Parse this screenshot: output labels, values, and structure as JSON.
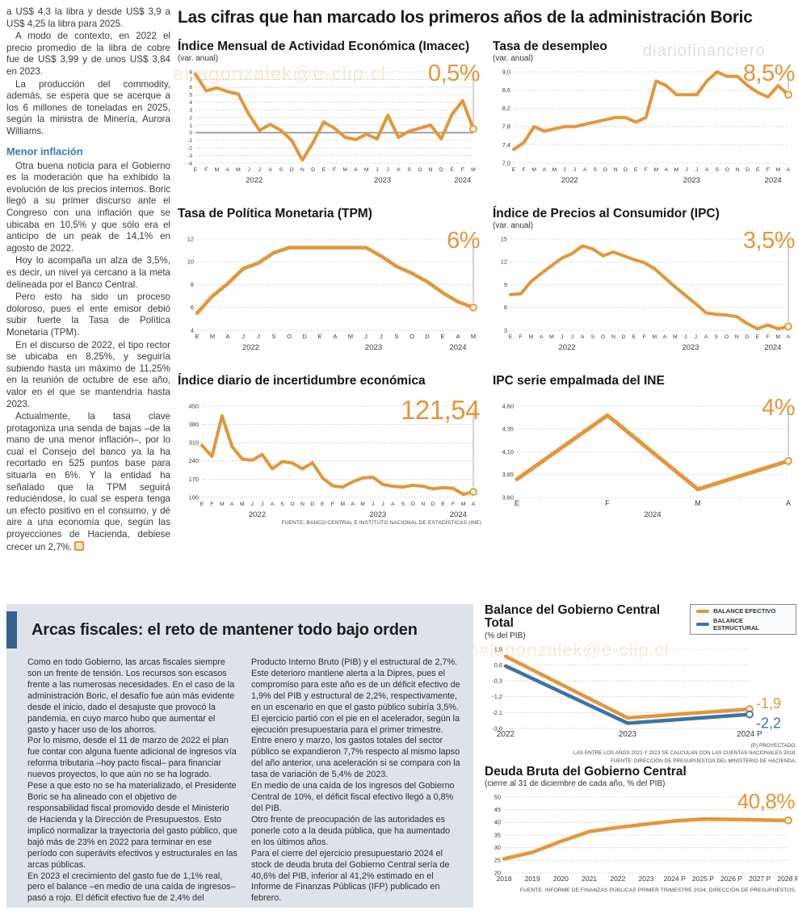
{
  "main_title": "Las cifras que han marcado los primeros años de la administración Boric",
  "watermarks": {
    "wm1": "eriagonzalek@e-clip.cl",
    "wm2": "diariofinanciero",
    "wm3": "diariofinanciero#lagonzalek@e-clip.cl"
  },
  "left_column": {
    "p1": "a US$ 4,3 la libra y desde US$ 3,9 a US$ 4,25 la libra para 2025.",
    "p2": "A modo de contexto, en 2022 el precio promedio de la libra de cobre fue de US$ 3,99 y de unos US$ 3,84 en 2023.",
    "p3": "La producción del commodity, además, se espera que se acerque a los 6 millones de toneladas en 2025, según la ministra de Minería, Aurora Williams.",
    "subhead": "Menor inflación",
    "p4": "Otra buena noticia para el Gobierno es la moderación que ha exhibido la evolución de los precios internos. Boric llegó a su primer discurso ante el Congreso con una inflación que se ubicaba en 10,5% y que sólo era el anticipo de un peak de 14,1% en agosto de 2022.",
    "p5": "Hoy lo acompaña un alza de 3,5%, es decir, un nivel ya cercano a la meta delineada por el Banco Central.",
    "p6": "Pero esto ha sido un proceso doloroso, pues el ente emisor debió subir fuerte la Tasa de Política Monetaria (TPM).",
    "p7": "En el discurso de 2022, el tipo rector se ubicaba en 8,25%, y seguiría subiendo hasta un máximo de 11,25% en la reunión de octubre de ese año, valor en el que se mantendría hasta 2023.",
    "p8": "Actualmente, la tasa clave protagoniza una senda de bajas –de la mano de una menor inflación–, por lo cual el Consejo del banco ya la ha recortado en 525 puntos base para situarla en 6%. Y la entidad ha señalado que la TPM seguirá reduciéndose, lo cual se espera tenga un efecto positivo en el consumo, y dé aire a una economía que, según las proyecciones de Hacienda, debiese crecer un 2,7%."
  },
  "bottom": {
    "title": "Arcas fiscales: el reto de mantener todo bajo orden",
    "col1": {
      "p1": "Como en todo Gobierno, las arcas fiscales siempre son un frente de tensión. Los recursos son escasos frente a las numerosas necesidades. En el caso de la administración Boric, el desafío fue aún más evidente desde el inicio, dado el desajuste que provocó la pandemia, en cuyo marco hubo que aumentar el gasto y hacer uso de los ahorros.",
      "p2": "Por lo mismo, desde el 11 de marzo de 2022 el plan fue contar con alguna fuente adicional de ingresos vía reforma tributaria –hoy pacto fiscal– para financiar nuevos proyectos, lo que aún no se ha logrado.",
      "p3": "Pese a que esto no se ha materializado, el Presidente Boric se ha alineado con el objetivo de responsabilidad fiscal promovido desde el Ministerio de Hacienda y la Dirección de Presupuestos. Esto implicó normalizar la trayectoria del gasto público, que bajó más de 23% en 2022 para terminar en ese período con superávits efectivos y estructurales en las arcas públicas.",
      "p4": "En 2023 el crecimiento del gasto fue de 1,1% real, pero el balance –en medio de una caída de ingresos– pasó a rojo. El déficit efectivo fue de 2,4% del"
    },
    "col2": {
      "p1": "Producto Interno Bruto (PIB) y el estructural de 2,7%. Este deterioro mantiene alerta a la Dipres, pues el compromiso para este año es de un déficit efectivo de 1,9% del PIB y estructural de 2,2%, respectivamente, en un escenario en que el gasto público subiría 3,5%.",
      "p2": "El ejercicio partió con el pie en el acelerador, según la ejecución presupuestaria para el primer trimestre. Entre enero y marzo, los gastos totales del sector público se expandieron 7,7% respecto al mismo lapso del año anterior, una aceleración si se compara con la tasa de variación de 5,4% de 2023.",
      "p3": "En medio de una caída de los ingresos del Gobierno Central de 10%, el déficit fiscal efectivo llegó a 0,8% del PIB.",
      "p4": "Otro frente de preocupación de las autoridades es ponerle coto a la deuda pública, que ha aumentado en los últimos años.",
      "p5": "Para el cierre del ejercicio presupuestario 2024 el stock de deuda bruta del Gobierno Central sería de 40,6% del PIB, inferior al 41,2% estimado en el Informe de Finanzas Públicas (IFP) publicado en febrero."
    }
  },
  "chart_data": [
    {
      "id": "imacec",
      "type": "line",
      "title": "Índice Mensual de Actividad Económica (Imacec)",
      "subtitle": "(var. anual)",
      "big_label": "0,5%",
      "ylim": [
        -4,
        8
      ],
      "yticks": [
        8,
        7,
        6,
        5,
        4,
        3,
        2,
        1,
        0,
        -1,
        -2,
        -3,
        -4
      ],
      "ytick_labels": [
        "8",
        "7",
        "6",
        "5",
        "4",
        "3",
        "2",
        "1",
        "0",
        "-1",
        "-2",
        "-3",
        "-4"
      ],
      "yfs": 6.6,
      "ml": 22,
      "zero_line": true,
      "callout": true,
      "x_labels": [
        "E",
        "F",
        "M",
        "A",
        "M",
        "J",
        "J",
        "A",
        "S",
        "O",
        "N",
        "D",
        "E",
        "F",
        "M",
        "A",
        "M",
        "J",
        "J",
        "A",
        "S",
        "O",
        "N",
        "D",
        "E",
        "F",
        "M"
      ],
      "years": [
        {
          "label": "2022",
          "i": 5.5
        },
        {
          "label": "2023",
          "i": 17.5
        },
        {
          "label": "2024",
          "i": 25
        }
      ],
      "series": [
        {
          "name": "Imacec",
          "color": "#e2973b",
          "width": 4,
          "end_marker": true,
          "values": [
            7.7,
            5.5,
            5.9,
            5.4,
            5.1,
            2.4,
            0.3,
            1.1,
            0.3,
            -1.0,
            -3.6,
            -1.3,
            1.4,
            0.6,
            -0.6,
            -0.9,
            -0.2,
            -0.8,
            2.3,
            -0.6,
            0.2,
            0.6,
            1.0,
            -0.8,
            2.4,
            4.2,
            0.5
          ]
        }
      ]
    },
    {
      "id": "desempleo",
      "type": "line",
      "title": "Tasa de desempleo",
      "subtitle": "(var. anual)",
      "big_label": "8,5%",
      "ylim": [
        7.0,
        9.0
      ],
      "yticks": [
        9.0,
        8.6,
        8.2,
        7.8,
        7.4,
        7.0
      ],
      "ytick_labels": [
        "9,0",
        "8,6",
        "8,2",
        "7,8",
        "7,4",
        "7,0"
      ],
      "ml": 26,
      "callout": true,
      "x_labels": [
        "E",
        "F",
        "M",
        "A",
        "M",
        "J",
        "J",
        "A",
        "S",
        "O",
        "N",
        "D",
        "E",
        "F",
        "M",
        "A",
        "M",
        "J",
        "J",
        "A",
        "S",
        "O",
        "N",
        "D",
        "E",
        "F",
        "M",
        "A"
      ],
      "years": [
        {
          "label": "2022",
          "i": 5.5
        },
        {
          "label": "2023",
          "i": 17.5
        },
        {
          "label": "2024",
          "i": 25.5
        }
      ],
      "series": [
        {
          "name": "Tasa de desempleo",
          "color": "#e2973b",
          "width": 4,
          "end_marker": true,
          "values": [
            7.3,
            7.45,
            7.8,
            7.7,
            7.75,
            7.8,
            7.8,
            7.85,
            7.9,
            7.95,
            8.0,
            8.0,
            7.9,
            8.0,
            8.8,
            8.7,
            8.5,
            8.5,
            8.5,
            8.8,
            9.0,
            8.9,
            8.9,
            8.7,
            8.55,
            8.45,
            8.7,
            8.5
          ]
        }
      ]
    },
    {
      "id": "tpm",
      "type": "line",
      "title": "Tasa de Política Monetaria (TPM)",
      "subtitle": "",
      "big_label": "6%",
      "ylim": [
        4,
        12
      ],
      "yticks": [
        12,
        10,
        8,
        6,
        4
      ],
      "ytick_labels": [
        "12",
        "10",
        "8",
        "6",
        "4"
      ],
      "ml": 24,
      "xfs": 7.5,
      "callout": true,
      "x_labels": [
        "E",
        "M",
        "A",
        "J",
        "J",
        "S",
        "O",
        "D",
        "E",
        "A",
        "M",
        "J",
        "J",
        "S",
        "O",
        "D",
        "E",
        "A",
        "M"
      ],
      "years": [
        {
          "label": "2022",
          "i": 3.5
        },
        {
          "label": "2023",
          "i": 11.5
        },
        {
          "label": "2024",
          "i": 17
        }
      ],
      "series": [
        {
          "name": "TPM",
          "color": "#e2973b",
          "width": 4.5,
          "end_marker": true,
          "values": [
            5.5,
            7.0,
            8.1,
            9.4,
            9.9,
            10.8,
            11.25,
            11.25,
            11.25,
            11.25,
            11.25,
            11.25,
            10.5,
            9.6,
            9.0,
            8.25,
            7.3,
            6.5,
            6.0
          ]
        }
      ]
    },
    {
      "id": "ipc",
      "type": "line",
      "title": "Índice de Precios al Consumidor (IPC)",
      "subtitle": "(var. anual)",
      "big_label": "3,5%",
      "ylim": [
        3,
        15
      ],
      "yticks": [
        15,
        12,
        9,
        6,
        3
      ],
      "ytick_labels": [
        "15",
        "12",
        "9",
        "6",
        "3"
      ],
      "ml": 22,
      "callout": true,
      "x_labels": [
        "E",
        "F",
        "M",
        "A",
        "M",
        "J",
        "J",
        "A",
        "S",
        "O",
        "N",
        "D",
        "E",
        "F",
        "M",
        "A",
        "M",
        "J",
        "J",
        "A",
        "S",
        "O",
        "N",
        "D",
        "E",
        "F",
        "M",
        "A"
      ],
      "years": [
        {
          "label": "2022",
          "i": 5.5
        },
        {
          "label": "2023",
          "i": 17.5
        },
        {
          "label": "2024",
          "i": 25.5
        }
      ],
      "series": [
        {
          "name": "IPC",
          "color": "#e2973b",
          "width": 4,
          "end_marker": true,
          "values": [
            7.7,
            7.8,
            9.4,
            10.5,
            11.5,
            12.5,
            13.1,
            14.1,
            13.7,
            12.8,
            13.3,
            12.8,
            12.3,
            11.9,
            11.1,
            9.9,
            8.7,
            7.6,
            6.5,
            5.3,
            5.1,
            5.0,
            4.8,
            3.9,
            3.2,
            3.7,
            3.2,
            3.5
          ]
        }
      ]
    },
    {
      "id": "incertidumbre",
      "type": "line",
      "title": "Índice diario de incertidumbre económica",
      "subtitle": "",
      "big_label": "121,54",
      "fuente": "FUENTE: BANCO CENTRAL E INSTITUTO NACIONAL DE ESTADÍSTICAS (INE)",
      "ylim": [
        100,
        450
      ],
      "yticks": [
        450,
        380,
        310,
        240,
        170,
        100
      ],
      "ytick_labels": [
        "450",
        "380",
        "310",
        "240",
        "170",
        "100"
      ],
      "ml": 30,
      "callout": true,
      "x_labels": [
        "E",
        "F",
        "M",
        "A",
        "M",
        "J",
        "J",
        "A",
        "S",
        "O",
        "N",
        "D",
        "E",
        "F",
        "M",
        "A",
        "M",
        "J",
        "J",
        "A",
        "S",
        "O",
        "N",
        "D",
        "E",
        "F",
        "M",
        "A"
      ],
      "years": [
        {
          "label": "2022",
          "i": 5.5
        },
        {
          "label": "2023",
          "i": 17.5
        },
        {
          "label": "2024",
          "i": 25.5
        }
      ],
      "series": [
        {
          "name": "Incertidumbre económica",
          "color": "#e2973b",
          "width": 4,
          "end_marker": true,
          "values": [
            300,
            258,
            413,
            295,
            248,
            243,
            265,
            210,
            238,
            232,
            210,
            233,
            175,
            145,
            140,
            160,
            175,
            178,
            150,
            143,
            140,
            147,
            143,
            133,
            138,
            135,
            112,
            121.54
          ]
        }
      ]
    },
    {
      "id": "ipc-empalmada",
      "type": "line",
      "title": "IPC serie empalmada del INE",
      "subtitle": "",
      "big_label": "4%",
      "ylim": [
        3.6,
        4.6
      ],
      "yticks": [
        4.6,
        4.35,
        4.1,
        3.85,
        3.6
      ],
      "ytick_labels": [
        "4,60",
        "4,35",
        "4,10",
        "3,85",
        "3,60"
      ],
      "ml": 30,
      "xfs": 9,
      "callout": true,
      "x_labels": [
        "E",
        "F",
        "M",
        "A"
      ],
      "years": [
        {
          "label": "2024",
          "i": 1.5
        }
      ],
      "series": [
        {
          "name": "IPC serie empalmada",
          "color": "#e2973b",
          "width": 5,
          "end_marker": true,
          "values": [
            3.8,
            4.5,
            3.69,
            4.0
          ]
        }
      ]
    },
    {
      "id": "balance",
      "type": "line",
      "title": "Balance del Gobierno Central Total",
      "subtitle": "(% del PIB)",
      "footnotes": [
        "(P) PROYECTADO.",
        "LAS ENTRE LOS AÑOS 2021 Y 2023 SE CALCULAN  CON LAS CUENTAS NACIONALES 2018.",
        "FUENTE: DIRECCIÓN DE PRESUPUESTOS DEL MINISTERIO DE HACIENDA."
      ],
      "ylim": [
        -3.0,
        1.5
      ],
      "yticks": [
        1.5,
        0.6,
        -0.3,
        -1.2,
        -2.1,
        -3.0
      ],
      "ytick_labels": [
        "1,5",
        "0,6",
        "-0,3",
        "-1,2",
        "-2,1",
        "-3,0"
      ],
      "ml": 26,
      "mr": 58,
      "xfs": 10,
      "x_labels": [
        "2022",
        "2023",
        "2024 P"
      ],
      "series": [
        {
          "name": "BALANCE EFECTIVO",
          "color": "#e2973b",
          "width": 4.5,
          "end_marker": true,
          "end_label": "-1,9",
          "label_dx": 8,
          "label_dy": -1,
          "values": [
            1.1,
            -2.4,
            -1.9
          ]
        },
        {
          "name": "BALANCE ESTRUCTURAL",
          "color": "#3e74a3",
          "width": 4.5,
          "end_marker": true,
          "end_label": "-2,2",
          "label_dx": 8,
          "label_dy": 17,
          "values": [
            0.55,
            -2.7,
            -2.2
          ]
        }
      ]
    },
    {
      "id": "deuda",
      "type": "line",
      "title": "Deuda Bruta del Gobierno Central",
      "subtitle": "(cierre al 31 de diciembre de cada año, % del PIB)",
      "big_label": "40,8%",
      "fuente": "FUENTE: INFORME DE FINANZAS PÚBLICAS PRIMER TRIMESTRE 2024, DIRECCIÓN DE PRESUPUESTOS.",
      "ylim": [
        20,
        50
      ],
      "yticks": [
        50,
        45,
        40,
        35,
        30,
        25,
        20
      ],
      "ytick_labels": [
        "50",
        "45",
        "40",
        "35",
        "30",
        "25",
        "20"
      ],
      "ml": 24,
      "xfs": 8.6,
      "x_labels": [
        "2018",
        "2019",
        "2020",
        "2021",
        "2022",
        "2023",
        "2024 P",
        "2025 P",
        "2026 P",
        "2027 P",
        "2028 P"
      ],
      "series": [
        {
          "name": "Deuda bruta",
          "color": "#e2973b",
          "width": 4.5,
          "end_marker": true,
          "values": [
            25.6,
            28.2,
            32.5,
            36.4,
            38.0,
            39.3,
            40.6,
            41.3,
            41.2,
            41.0,
            40.8
          ]
        }
      ]
    }
  ]
}
